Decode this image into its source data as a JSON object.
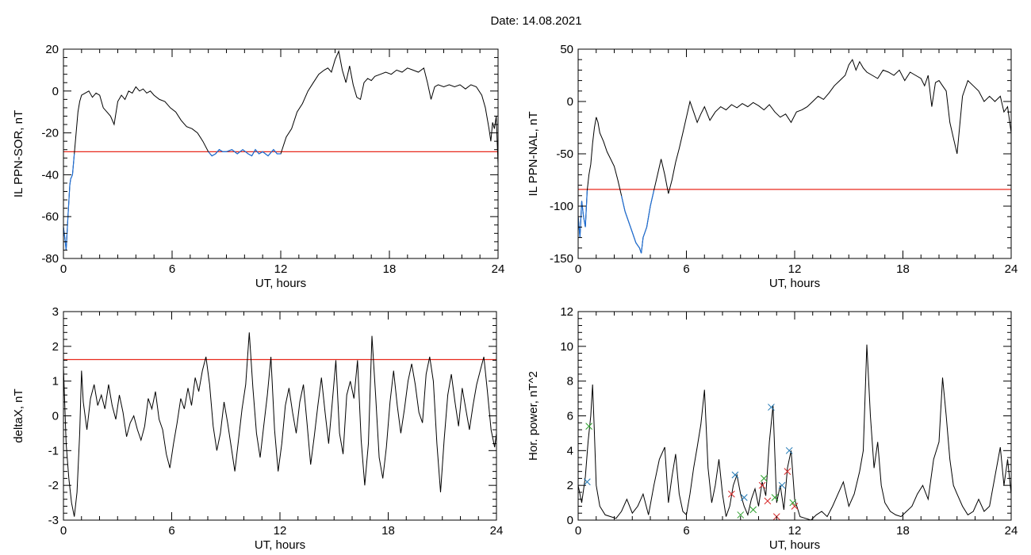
{
  "figure": {
    "date_label": "Date:  14.08.2021"
  },
  "chart_data": [
    {
      "type": "line",
      "ylabel": "IL PPN-SOR, nT",
      "xlabel": "UT, hours",
      "xlim": [
        0,
        24
      ],
      "ylim": [
        -80,
        20
      ],
      "xticks": [
        0,
        6,
        12,
        18,
        24
      ],
      "yticks": [
        -80,
        -60,
        -40,
        -20,
        0,
        20
      ],
      "threshold": {
        "value": -29,
        "color": "#e8291c"
      },
      "below_threshold_color": "#1f6fd6",
      "series": [
        {
          "color": "#000000",
          "x": [
            0,
            0.1,
            0.15,
            0.25,
            0.35,
            0.4,
            0.5,
            0.6,
            0.7,
            0.8,
            0.9,
            1.0,
            1.2,
            1.4,
            1.6,
            1.8,
            2.0,
            2.2,
            2.4,
            2.6,
            2.8,
            3.0,
            3.2,
            3.4,
            3.6,
            3.8,
            4.0,
            4.2,
            4.4,
            4.6,
            4.8,
            5.0,
            5.3,
            5.6,
            5.9,
            6.2,
            6.5,
            6.8,
            7.1,
            7.4,
            7.7,
            8.0,
            8.2,
            8.4,
            8.6,
            8.8,
            9.0,
            9.3,
            9.6,
            9.9,
            10.2,
            10.4,
            10.6,
            10.8,
            11.0,
            11.3,
            11.6,
            11.8,
            12.0,
            12.3,
            12.6,
            12.9,
            13.2,
            13.5,
            13.8,
            14.1,
            14.4,
            14.6,
            14.8,
            15.0,
            15.2,
            15.4,
            15.6,
            15.8,
            16.0,
            16.2,
            16.4,
            16.6,
            16.8,
            17.0,
            17.2,
            17.5,
            17.8,
            18.1,
            18.4,
            18.7,
            19.0,
            19.3,
            19.6,
            19.9,
            20.1,
            20.3,
            20.5,
            20.7,
            21.0,
            21.3,
            21.6,
            21.9,
            22.2,
            22.5,
            22.8,
            23.1,
            23.3,
            23.5,
            23.6,
            23.7,
            23.8,
            23.9,
            24.0
          ],
          "values": [
            -65,
            -72,
            -76,
            -60,
            -45,
            -42,
            -40,
            -30,
            -20,
            -10,
            -5,
            -2,
            -1,
            0,
            -3,
            -1,
            -2,
            -8,
            -10,
            -12,
            -16,
            -5,
            -2,
            -4,
            0,
            -1,
            2,
            0,
            1,
            -1,
            0,
            -2,
            -4,
            -5,
            -8,
            -10,
            -14,
            -17,
            -18,
            -20,
            -24,
            -29,
            -31,
            -30,
            -28,
            -29,
            -29,
            -28,
            -30,
            -28,
            -30,
            -31,
            -28,
            -30,
            -29,
            -31,
            -28,
            -30,
            -30,
            -22,
            -18,
            -10,
            -6,
            0,
            4,
            8,
            10,
            11,
            9,
            15,
            19,
            10,
            4,
            12,
            3,
            -3,
            -4,
            4,
            6,
            5,
            7,
            8,
            9,
            8,
            10,
            9,
            11,
            10,
            9,
            11,
            4,
            -4,
            2,
            3,
            2,
            3,
            2,
            3,
            1,
            3,
            2,
            -2,
            -8,
            -18,
            -24,
            -15,
            -18,
            -12,
            -35
          ]
        }
      ]
    },
    {
      "type": "line",
      "ylabel": "IL PPN-NAL, nT",
      "xlabel": "UT, hours",
      "xlim": [
        0,
        24
      ],
      "ylim": [
        -150,
        50
      ],
      "xticks": [
        0,
        6,
        12,
        18,
        24
      ],
      "yticks": [
        -150,
        -100,
        -50,
        0,
        50
      ],
      "threshold": {
        "value": -84,
        "color": "#e8291c"
      },
      "below_threshold_color": "#1f6fd6",
      "series": [
        {
          "color": "#000000",
          "x": [
            0,
            0.1,
            0.2,
            0.3,
            0.4,
            0.5,
            0.6,
            0.7,
            0.8,
            0.9,
            1.0,
            1.1,
            1.2,
            1.4,
            1.6,
            1.8,
            2.0,
            2.2,
            2.4,
            2.6,
            2.8,
            3.0,
            3.2,
            3.4,
            3.5,
            3.6,
            3.8,
            4.0,
            4.2,
            4.4,
            4.6,
            4.8,
            5.0,
            5.2,
            5.4,
            5.6,
            5.8,
            6.0,
            6.2,
            6.4,
            6.6,
            6.8,
            7.0,
            7.3,
            7.6,
            7.9,
            8.2,
            8.5,
            8.8,
            9.1,
            9.4,
            9.7,
            10.0,
            10.3,
            10.6,
            10.9,
            11.2,
            11.5,
            11.8,
            12.1,
            12.4,
            12.7,
            13.0,
            13.3,
            13.6,
            13.9,
            14.2,
            14.5,
            14.8,
            15.0,
            15.2,
            15.4,
            15.6,
            15.8,
            16.0,
            16.3,
            16.6,
            16.9,
            17.2,
            17.5,
            17.8,
            18.1,
            18.4,
            18.7,
            19.0,
            19.2,
            19.4,
            19.6,
            19.8,
            20.0,
            20.2,
            20.4,
            20.6,
            20.8,
            21.0,
            21.3,
            21.6,
            21.9,
            22.2,
            22.5,
            22.8,
            23.1,
            23.4,
            23.6,
            23.8,
            24.0
          ],
          "values": [
            -110,
            -130,
            -95,
            -110,
            -120,
            -85,
            -70,
            -60,
            -40,
            -25,
            -15,
            -20,
            -30,
            -38,
            -48,
            -55,
            -62,
            -75,
            -90,
            -105,
            -115,
            -125,
            -135,
            -140,
            -145,
            -130,
            -120,
            -100,
            -85,
            -70,
            -55,
            -70,
            -88,
            -75,
            -58,
            -45,
            -30,
            -15,
            0,
            -10,
            -20,
            -12,
            -5,
            -18,
            -10,
            -5,
            -8,
            -3,
            -6,
            -2,
            -5,
            -1,
            -4,
            -8,
            -3,
            -10,
            -15,
            -12,
            -20,
            -10,
            -8,
            -5,
            0,
            5,
            2,
            8,
            15,
            20,
            25,
            35,
            40,
            30,
            38,
            32,
            28,
            25,
            22,
            30,
            28,
            25,
            30,
            20,
            28,
            25,
            22,
            15,
            25,
            -5,
            18,
            20,
            15,
            10,
            -20,
            -35,
            -50,
            5,
            20,
            15,
            10,
            0,
            5,
            0,
            5,
            -10,
            -5,
            -30
          ]
        }
      ]
    },
    {
      "type": "line",
      "ylabel": "deltaX, nT",
      "xlabel": "UT, hours",
      "xlim": [
        0,
        24
      ],
      "ylim": [
        -3,
        3
      ],
      "xticks": [
        0,
        6,
        12,
        18,
        24
      ],
      "yticks": [
        -3,
        -2,
        -1,
        0,
        1,
        2,
        3
      ],
      "threshold": {
        "value": 1.62,
        "color": "#e8291c"
      },
      "series": [
        {
          "color": "#000000",
          "x": [
            0,
            0.15,
            0.3,
            0.45,
            0.6,
            0.75,
            0.9,
            1.0,
            1.1,
            1.3,
            1.5,
            1.7,
            1.9,
            2.1,
            2.3,
            2.5,
            2.7,
            2.9,
            3.1,
            3.3,
            3.5,
            3.7,
            3.9,
            4.1,
            4.3,
            4.5,
            4.7,
            4.9,
            5.1,
            5.3,
            5.5,
            5.7,
            5.9,
            6.1,
            6.3,
            6.5,
            6.7,
            6.9,
            7.1,
            7.3,
            7.5,
            7.7,
            7.9,
            8.1,
            8.3,
            8.5,
            8.7,
            8.9,
            9.1,
            9.3,
            9.5,
            9.7,
            9.9,
            10.1,
            10.3,
            10.5,
            10.7,
            10.9,
            11.1,
            11.3,
            11.5,
            11.7,
            11.9,
            12.1,
            12.3,
            12.5,
            12.7,
            12.9,
            13.1,
            13.3,
            13.5,
            13.7,
            13.9,
            14.1,
            14.3,
            14.5,
            14.7,
            14.9,
            15.1,
            15.3,
            15.5,
            15.7,
            15.9,
            16.1,
            16.3,
            16.5,
            16.7,
            16.9,
            17.1,
            17.3,
            17.5,
            17.7,
            17.9,
            18.1,
            18.3,
            18.5,
            18.7,
            18.9,
            19.1,
            19.3,
            19.5,
            19.7,
            19.9,
            20.1,
            20.3,
            20.5,
            20.7,
            20.9,
            21.1,
            21.3,
            21.5,
            21.7,
            21.9,
            22.1,
            22.3,
            22.5,
            22.7,
            22.9,
            23.1,
            23.3,
            23.5,
            23.7,
            23.9,
            24.0
          ],
          "values": [
            1.4,
            -0.8,
            -1.8,
            -2.5,
            -2.9,
            -2.2,
            -0.5,
            1.3,
            0.4,
            -0.4,
            0.5,
            0.9,
            0.3,
            0.6,
            0.2,
            0.9,
            0.3,
            -0.1,
            0.6,
            0.1,
            -0.6,
            -0.2,
            0.0,
            -0.4,
            -0.7,
            -0.3,
            0.5,
            0.2,
            0.7,
            -0.1,
            -0.4,
            -1.1,
            -1.5,
            -0.8,
            -0.2,
            0.5,
            0.2,
            0.8,
            0.3,
            1.1,
            0.7,
            1.3,
            1.7,
            0.9,
            -0.3,
            -1.0,
            -0.5,
            0.4,
            -0.2,
            -0.9,
            -1.6,
            -0.7,
            0.2,
            0.9,
            2.4,
            0.8,
            -0.5,
            -1.2,
            -0.3,
            0.6,
            1.7,
            -0.4,
            -1.6,
            -0.8,
            0.3,
            0.8,
            0.1,
            -0.5,
            0.4,
            0.9,
            -0.2,
            -1.4,
            -0.6,
            0.3,
            1.1,
            0.1,
            -0.8,
            0.4,
            1.6,
            -0.5,
            -1.1,
            0.6,
            1.0,
            0.5,
            1.6,
            -0.7,
            -2.0,
            -0.8,
            2.3,
            0.6,
            -1.2,
            -1.8,
            -0.9,
            0.4,
            1.3,
            0.3,
            -0.5,
            0.2,
            1.0,
            1.5,
            0.9,
            0.1,
            -0.2,
            1.2,
            1.7,
            1.0,
            -0.8,
            -2.2,
            -0.7,
            0.6,
            1.2,
            0.4,
            -0.3,
            0.8,
            0.2,
            -0.4,
            0.3,
            0.9,
            1.3,
            1.7,
            0.7,
            -0.4,
            -0.9,
            -0.5
          ]
        }
      ]
    },
    {
      "type": "line",
      "ylabel": "Hor. power, nT^2",
      "xlabel": "UT, hours",
      "xlim": [
        0,
        24
      ],
      "ylim": [
        0,
        12
      ],
      "xticks": [
        0,
        6,
        12,
        18,
        24
      ],
      "yticks": [
        0,
        2,
        4,
        6,
        8,
        10,
        12
      ],
      "series": [
        {
          "color": "#000000",
          "x": [
            0,
            0.2,
            0.4,
            0.55,
            0.7,
            0.8,
            0.9,
            1.0,
            1.2,
            1.5,
            1.8,
            2.1,
            2.4,
            2.7,
            3.0,
            3.3,
            3.6,
            3.9,
            4.2,
            4.5,
            4.8,
            5.0,
            5.2,
            5.4,
            5.6,
            5.8,
            6.0,
            6.2,
            6.4,
            6.6,
            6.8,
            7.0,
            7.2,
            7.4,
            7.6,
            7.8,
            8.0,
            8.2,
            8.4,
            8.6,
            8.8,
            9.0,
            9.2,
            9.4,
            9.6,
            9.8,
            10.0,
            10.2,
            10.4,
            10.6,
            10.8,
            11.0,
            11.2,
            11.4,
            11.6,
            11.8,
            12.0,
            12.3,
            12.6,
            12.9,
            13.2,
            13.5,
            13.8,
            14.1,
            14.4,
            14.7,
            15.0,
            15.3,
            15.6,
            15.8,
            16.0,
            16.2,
            16.4,
            16.6,
            16.8,
            17.0,
            17.3,
            17.6,
            17.9,
            18.2,
            18.5,
            18.8,
            19.1,
            19.4,
            19.7,
            20.0,
            20.2,
            20.4,
            20.6,
            20.8,
            21.0,
            21.3,
            21.6,
            21.9,
            22.2,
            22.5,
            22.8,
            23.1,
            23.4,
            23.6,
            23.8,
            24.0
          ],
          "values": [
            2.0,
            1.0,
            2.5,
            4.5,
            6.0,
            7.8,
            5.0,
            2.0,
            0.8,
            0.3,
            0.2,
            0.1,
            0.5,
            1.2,
            0.4,
            0.8,
            1.5,
            0.3,
            2.0,
            3.5,
            4.2,
            1.0,
            2.5,
            3.8,
            1.5,
            0.5,
            0.3,
            1.5,
            3.0,
            4.2,
            5.5,
            7.5,
            3.0,
            1.0,
            2.0,
            3.5,
            1.5,
            0.2,
            0.8,
            2.0,
            2.6,
            1.5,
            0.8,
            0.3,
            1.2,
            1.8,
            0.8,
            2.2,
            1.4,
            4.5,
            6.6,
            1.0,
            2.0,
            0.6,
            3.0,
            4.0,
            1.2,
            0.2,
            0.1,
            0.0,
            0.3,
            0.5,
            0.2,
            0.8,
            1.5,
            2.2,
            0.8,
            1.5,
            2.8,
            4.0,
            10.1,
            6.0,
            3.0,
            4.5,
            2.0,
            1.0,
            0.5,
            0.3,
            0.2,
            0.5,
            0.8,
            1.5,
            2.0,
            1.2,
            3.5,
            4.5,
            8.2,
            6.0,
            3.5,
            2.0,
            1.5,
            0.8,
            0.3,
            0.5,
            1.2,
            0.5,
            0.8,
            2.5,
            4.2,
            2.0,
            3.5,
            1.5
          ]
        }
      ],
      "markers": [
        {
          "symbol": "x",
          "color": "#1f77b4",
          "points": [
            [
              0.5,
              2.2
            ],
            [
              8.7,
              2.6
            ],
            [
              9.2,
              1.3
            ],
            [
              10.7,
              6.5
            ],
            [
              11.3,
              2.0
            ],
            [
              11.7,
              4.0
            ]
          ]
        },
        {
          "symbol": "x",
          "color": "#d62728",
          "points": [
            [
              8.5,
              1.5
            ],
            [
              10.2,
              2.0
            ],
            [
              10.5,
              1.1
            ],
            [
              11.0,
              0.2
            ],
            [
              11.6,
              2.8
            ],
            [
              12.0,
              0.8
            ]
          ]
        },
        {
          "symbol": "x",
          "color": "#2ca02c",
          "points": [
            [
              0.6,
              5.4
            ],
            [
              9.0,
              0.3
            ],
            [
              9.7,
              0.6
            ],
            [
              10.3,
              2.4
            ],
            [
              10.9,
              1.3
            ],
            [
              11.9,
              1.0
            ]
          ]
        }
      ]
    }
  ]
}
